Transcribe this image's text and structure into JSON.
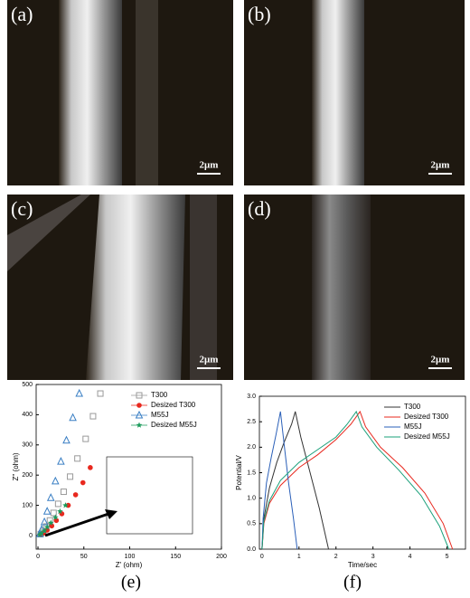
{
  "images": [
    {
      "label": "(a)",
      "scale_bar": "2μm"
    },
    {
      "label": "(b)",
      "scale_bar": "2μm"
    },
    {
      "label": "(c)",
      "scale_bar": "2μm"
    },
    {
      "label": "(d)",
      "scale_bar": "2μm"
    }
  ],
  "chart_data": [
    {
      "type": "scatter",
      "panel_label": "(e)",
      "x_label": "Z' (ohm)",
      "y_label": "Z'' (ohm)",
      "xlim": [
        -2,
        200
      ],
      "xticks": [
        0,
        50,
        100,
        150,
        200
      ],
      "ylim": [
        -45,
        500
      ],
      "yticks": [
        0,
        100,
        200,
        300,
        400,
        500
      ],
      "legend": "upper right",
      "series": [
        {
          "name": "T300",
          "color": "#999999",
          "marker": "square-open",
          "x": [
            3,
            6,
            9,
            13,
            17,
            22,
            28,
            35,
            43,
            52,
            60,
            68
          ],
          "values": [
            5,
            15,
            30,
            50,
            75,
            105,
            145,
            195,
            255,
            320,
            395,
            470
          ]
        },
        {
          "name": "Desized T300",
          "color": "#e8281e",
          "marker": "circle",
          "x": [
            3,
            6,
            10,
            15,
            20,
            26,
            33,
            41,
            49,
            57
          ],
          "values": [
            3,
            8,
            18,
            32,
            50,
            72,
            100,
            135,
            175,
            225
          ]
        },
        {
          "name": "M55J",
          "color": "#3a7fc4",
          "marker": "triangle-open",
          "x": [
            2,
            4,
            7,
            10,
            14,
            19,
            25,
            31,
            38,
            45
          ],
          "values": [
            5,
            20,
            45,
            80,
            125,
            180,
            245,
            315,
            390,
            470
          ]
        },
        {
          "name": "Desized M55J",
          "color": "#1a9a5a",
          "marker": "star",
          "x": [
            2,
            4,
            7,
            10,
            14,
            19,
            24,
            30
          ],
          "values": [
            3,
            8,
            16,
            28,
            42,
            60,
            80,
            100
          ]
        }
      ]
    },
    {
      "type": "line",
      "panel_label": "(f)",
      "x_label": "Time/sec",
      "y_label": "Potential/V",
      "xlim": [
        -0.07,
        5.5
      ],
      "xticks": [
        0,
        1,
        2,
        3,
        4,
        5
      ],
      "ylim": [
        0,
        3
      ],
      "yticks": [
        {
          "value": 0,
          "label": "0.0"
        },
        0.5,
        {
          "value": 1,
          "label": "1.0"
        },
        1.5,
        {
          "value": 2,
          "label": "2.0"
        },
        2.5,
        {
          "value": 3,
          "label": "3.0"
        }
      ],
      "legend": "upper right",
      "series": [
        {
          "name": "T300",
          "color": "#333333",
          "x": [
            0,
            0.05,
            0.2,
            0.4,
            0.6,
            0.8,
            0.9,
            1.05,
            1.3,
            1.55,
            1.8
          ],
          "values": [
            0,
            0.6,
            1.2,
            1.7,
            2.1,
            2.45,
            2.7,
            2.2,
            1.5,
            0.8,
            0
          ]
        },
        {
          "name": "Desized T300",
          "color": "#e8281e",
          "x": [
            0,
            0.05,
            0.2,
            0.5,
            1,
            1.5,
            2,
            2.4,
            2.65,
            2.8,
            3.2,
            3.8,
            4.4,
            4.9,
            5.15
          ],
          "values": [
            0,
            0.5,
            0.9,
            1.25,
            1.6,
            1.85,
            2.15,
            2.45,
            2.7,
            2.4,
            2,
            1.6,
            1.1,
            0.5,
            0
          ]
        },
        {
          "name": "M55J",
          "color": "#2a5fb8",
          "x": [
            0,
            0.03,
            0.12,
            0.25,
            0.38,
            0.5,
            0.6,
            0.72,
            0.85,
            0.95
          ],
          "values": [
            0,
            0.6,
            1.3,
            1.8,
            2.25,
            2.7,
            2.05,
            1.3,
            0.6,
            0
          ]
        },
        {
          "name": "Desized M55J",
          "color": "#1aa07a",
          "x": [
            0,
            0.05,
            0.2,
            0.5,
            1,
            1.5,
            2,
            2.3,
            2.55,
            2.7,
            3.1,
            3.7,
            4.3,
            4.8,
            5.05
          ],
          "values": [
            0,
            0.55,
            0.95,
            1.35,
            1.7,
            1.95,
            2.2,
            2.45,
            2.7,
            2.4,
            2,
            1.55,
            1.05,
            0.45,
            0
          ]
        }
      ]
    }
  ]
}
